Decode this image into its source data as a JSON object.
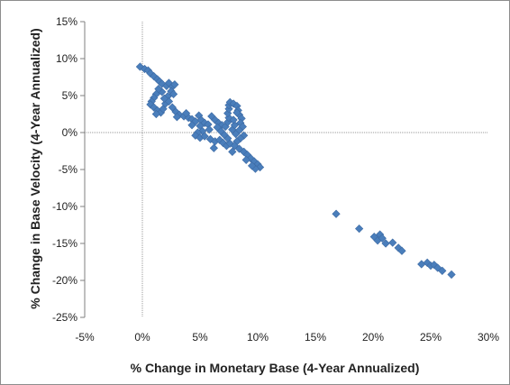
{
  "chart_data": {
    "type": "scatter",
    "title": "",
    "xlabel": "% Change in Monetary Base (4-Year Annualized)",
    "ylabel": "% Change in Base Velocity (4-Year Annualized)",
    "xlim": [
      -5,
      30
    ],
    "ylim": [
      -25,
      15
    ],
    "x_ticks": [
      -5,
      0,
      5,
      10,
      15,
      20,
      25,
      30
    ],
    "y_ticks": [
      15,
      10,
      5,
      0,
      -5,
      -10,
      -15,
      -20,
      -25
    ],
    "x_tick_labels": [
      "-5%",
      "0%",
      "5%",
      "10%",
      "15%",
      "20%",
      "25%",
      "30%"
    ],
    "y_tick_labels": [
      "15%",
      "10%",
      "5%",
      "0%",
      "-5%",
      "-10%",
      "-15%",
      "-20%",
      "-25%"
    ],
    "grid": false,
    "legend": "none",
    "marker": "diamond",
    "marker_color": "#4a7ebb",
    "series": [
      {
        "values": [
          {
            "x": -0.2,
            "y": 8.9
          },
          {
            "x": 0.2,
            "y": 8.6
          },
          {
            "x": 0.5,
            "y": 8.4
          },
          {
            "x": 0.7,
            "y": 8.0
          },
          {
            "x": 1.0,
            "y": 7.6
          },
          {
            "x": 1.3,
            "y": 7.2
          },
          {
            "x": 1.5,
            "y": 6.9
          },
          {
            "x": 1.7,
            "y": 6.6
          },
          {
            "x": 2.1,
            "y": 6.3
          },
          {
            "x": 2.3,
            "y": 6.7
          },
          {
            "x": 2.6,
            "y": 6.2
          },
          {
            "x": 2.8,
            "y": 6.5
          },
          {
            "x": 2.5,
            "y": 5.6
          },
          {
            "x": 2.7,
            "y": 5.2
          },
          {
            "x": 2.2,
            "y": 4.9
          },
          {
            "x": 1.7,
            "y": 5.5
          },
          {
            "x": 1.4,
            "y": 5.9
          },
          {
            "x": 1.2,
            "y": 5.2
          },
          {
            "x": 1.0,
            "y": 4.7
          },
          {
            "x": 0.8,
            "y": 4.2
          },
          {
            "x": 0.7,
            "y": 3.8
          },
          {
            "x": 1.0,
            "y": 3.4
          },
          {
            "x": 1.3,
            "y": 3.0
          },
          {
            "x": 1.6,
            "y": 2.7
          },
          {
            "x": 1.2,
            "y": 2.5
          },
          {
            "x": 1.8,
            "y": 3.2
          },
          {
            "x": 2.0,
            "y": 3.9
          },
          {
            "x": 2.3,
            "y": 4.2
          },
          {
            "x": 2.6,
            "y": 3.4
          },
          {
            "x": 2.9,
            "y": 2.8
          },
          {
            "x": 3.2,
            "y": 2.4
          },
          {
            "x": 3.0,
            "y": 2.1
          },
          {
            "x": 3.6,
            "y": 2.2
          },
          {
            "x": 4.0,
            "y": 2.0
          },
          {
            "x": 4.3,
            "y": 1.8
          },
          {
            "x": 4.6,
            "y": 1.5
          },
          {
            "x": 4.9,
            "y": 2.3
          },
          {
            "x": 5.1,
            "y": 1.7
          },
          {
            "x": 5.4,
            "y": 1.3
          },
          {
            "x": 5.0,
            "y": 0.9
          },
          {
            "x": 5.7,
            "y": 1.1
          },
          {
            "x": 6.0,
            "y": 2.2
          },
          {
            "x": 6.3,
            "y": 1.7
          },
          {
            "x": 6.6,
            "y": 1.3
          },
          {
            "x": 6.9,
            "y": 1.0
          },
          {
            "x": 5.8,
            "y": 0.4
          },
          {
            "x": 5.2,
            "y": 0.2
          },
          {
            "x": 4.8,
            "y": 0.0
          },
          {
            "x": 4.6,
            "y": -0.4
          },
          {
            "x": 5.0,
            "y": -0.7
          },
          {
            "x": 5.4,
            "y": -0.5
          },
          {
            "x": 5.9,
            "y": -0.9
          },
          {
            "x": 6.3,
            "y": -1.2
          },
          {
            "x": 6.7,
            "y": -1.0
          },
          {
            "x": 7.0,
            "y": -1.4
          },
          {
            "x": 7.3,
            "y": -1.8
          },
          {
            "x": 7.6,
            "y": -1.5
          },
          {
            "x": 7.4,
            "y": -0.8
          },
          {
            "x": 7.1,
            "y": -0.3
          },
          {
            "x": 6.8,
            "y": 0.2
          },
          {
            "x": 7.2,
            "y": 0.8
          },
          {
            "x": 7.4,
            "y": 1.4
          },
          {
            "x": 7.5,
            "y": 2.0
          },
          {
            "x": 7.4,
            "y": 2.6
          },
          {
            "x": 7.5,
            "y": 3.2
          },
          {
            "x": 7.5,
            "y": 3.7
          },
          {
            "x": 7.6,
            "y": 4.1
          },
          {
            "x": 7.9,
            "y": 3.9
          },
          {
            "x": 8.2,
            "y": 3.6
          },
          {
            "x": 8.3,
            "y": 3.0
          },
          {
            "x": 8.4,
            "y": 2.4
          },
          {
            "x": 8.6,
            "y": 1.9
          },
          {
            "x": 8.5,
            "y": 1.3
          },
          {
            "x": 8.7,
            "y": 0.8
          },
          {
            "x": 8.4,
            "y": 0.3
          },
          {
            "x": 8.1,
            "y": -0.2
          },
          {
            "x": 7.8,
            "y": 0.4
          },
          {
            "x": 8.0,
            "y": 1.0
          },
          {
            "x": 7.9,
            "y": 1.7
          },
          {
            "x": 8.2,
            "y": 2.7
          },
          {
            "x": 8.8,
            "y": -0.4
          },
          {
            "x": 8.5,
            "y": -0.8
          },
          {
            "x": 8.2,
            "y": -1.2
          },
          {
            "x": 8.0,
            "y": -1.8
          },
          {
            "x": 8.4,
            "y": -2.2
          },
          {
            "x": 8.8,
            "y": -2.6
          },
          {
            "x": 9.1,
            "y": -3.0
          },
          {
            "x": 9.4,
            "y": -3.5
          },
          {
            "x": 9.7,
            "y": -3.9
          },
          {
            "x": 10.0,
            "y": -4.3
          },
          {
            "x": 10.2,
            "y": -4.7
          },
          {
            "x": 9.8,
            "y": -4.9
          },
          {
            "x": 9.5,
            "y": -4.5
          },
          {
            "x": 9.0,
            "y": -3.7
          },
          {
            "x": 7.8,
            "y": -2.6
          },
          {
            "x": 6.2,
            "y": -2.1
          },
          {
            "x": 6.5,
            "y": 0.7
          },
          {
            "x": 4.3,
            "y": 1.0
          },
          {
            "x": 3.8,
            "y": 2.6
          },
          {
            "x": 1.9,
            "y": 4.6
          },
          {
            "x": 16.8,
            "y": -11.0
          },
          {
            "x": 18.8,
            "y": -13.0
          },
          {
            "x": 20.1,
            "y": -14.1
          },
          {
            "x": 20.4,
            "y": -14.6
          },
          {
            "x": 20.6,
            "y": -13.8
          },
          {
            "x": 20.8,
            "y": -14.3
          },
          {
            "x": 21.1,
            "y": -15.0
          },
          {
            "x": 21.7,
            "y": -14.9
          },
          {
            "x": 22.2,
            "y": -15.6
          },
          {
            "x": 22.5,
            "y": -16.0
          },
          {
            "x": 24.2,
            "y": -17.8
          },
          {
            "x": 24.7,
            "y": -17.6
          },
          {
            "x": 25.0,
            "y": -18.0
          },
          {
            "x": 25.3,
            "y": -17.9
          },
          {
            "x": 25.6,
            "y": -18.3
          },
          {
            "x": 26.0,
            "y": -18.7
          },
          {
            "x": 26.8,
            "y": -19.2
          }
        ]
      }
    ]
  }
}
